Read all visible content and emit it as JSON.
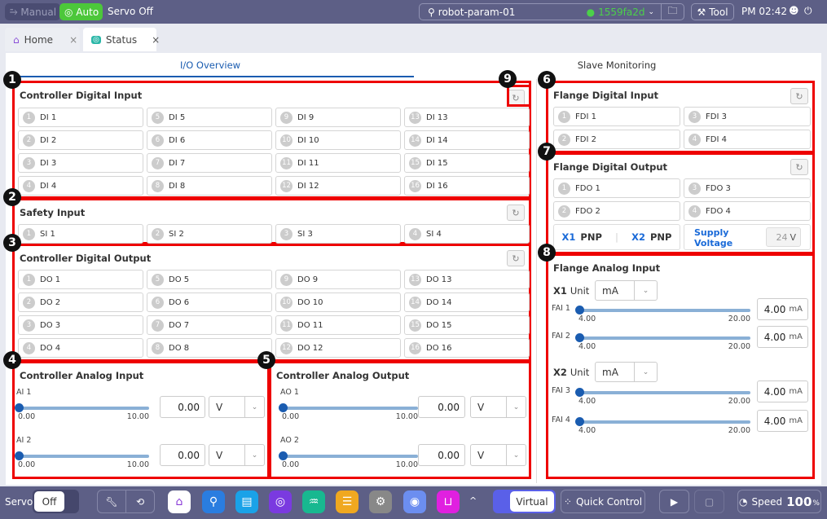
{
  "topbar": {
    "manual": "Manual",
    "auto": "Auto",
    "servo_status": "Servo Off",
    "project": "robot-param-01",
    "commit": "1559fa2d",
    "tool": "Tool",
    "time": "PM 02:42"
  },
  "tabs": [
    {
      "label": "Home"
    },
    {
      "label": "Status"
    }
  ],
  "subtabs": {
    "io": "I/O Overview",
    "slave": "Slave Monitoring"
  },
  "badges": [
    "1",
    "2",
    "3",
    "4",
    "5",
    "6",
    "7",
    "8",
    "9"
  ],
  "cdi": {
    "title": "Controller Digital Input",
    "items": [
      "DI 1",
      "DI 5",
      "DI 9",
      "DI 13",
      "DI 2",
      "DI 6",
      "DI 10",
      "DI 14",
      "DI 3",
      "DI 7",
      "DI 11",
      "DI 15",
      "DI 4",
      "DI 8",
      "DI 12",
      "DI 16"
    ],
    "nums": [
      "1",
      "5",
      "9",
      "13",
      "2",
      "6",
      "10",
      "14",
      "3",
      "7",
      "11",
      "15",
      "4",
      "8",
      "12",
      "16"
    ]
  },
  "si": {
    "title": "Safety Input",
    "items": [
      "SI 1",
      "SI 2",
      "SI 3",
      "SI 4"
    ],
    "nums": [
      "1",
      "2",
      "3",
      "4"
    ]
  },
  "cdo": {
    "title": "Controller Digital Output",
    "items": [
      "DO 1",
      "DO 5",
      "DO 9",
      "DO 13",
      "DO 2",
      "DO 6",
      "DO 10",
      "DO 14",
      "DO 3",
      "DO 7",
      "DO 11",
      "DO 15",
      "DO 4",
      "DO 8",
      "DO 12",
      "DO 16"
    ],
    "nums": [
      "1",
      "5",
      "9",
      "13",
      "2",
      "6",
      "10",
      "14",
      "3",
      "7",
      "11",
      "15",
      "4",
      "8",
      "12",
      "16"
    ]
  },
  "cai": {
    "title": "Controller Analog Input",
    "ch": [
      {
        "label": "AI 1",
        "min": "0.00",
        "max": "10.00",
        "value": "0.00",
        "unit": "V",
        "level": 0
      },
      {
        "label": "AI 2",
        "min": "0.00",
        "max": "10.00",
        "value": "0.00",
        "unit": "V",
        "level": 0
      }
    ]
  },
  "cao": {
    "title": "Controller Analog Output",
    "ch": [
      {
        "label": "AO 1",
        "min": "0.00",
        "max": "10.00",
        "value": "0.00",
        "unit": "V",
        "level": 0
      },
      {
        "label": "AO 2",
        "min": "0.00",
        "max": "10.00",
        "value": "0.00",
        "unit": "V",
        "level": 0
      }
    ]
  },
  "fdi": {
    "title": "Flange Digital Input",
    "items": [
      "FDI 1",
      "FDI 3",
      "FDI 2",
      "FDI 4"
    ],
    "nums": [
      "1",
      "3",
      "2",
      "4"
    ]
  },
  "fdo": {
    "title": "Flange Digital Output",
    "items": [
      "FDO 1",
      "FDO 3",
      "FDO 2",
      "FDO 4"
    ],
    "nums": [
      "1",
      "3",
      "2",
      "4"
    ],
    "x1": "X1",
    "x1_type": "PNP",
    "x2": "X2",
    "x2_type": "PNP",
    "supply_label": "Supply Voltage",
    "supply_value": "24",
    "supply_unit": "V"
  },
  "fai": {
    "title": "Flange Analog Input",
    "x1_label": "X1",
    "x2_label": "X2",
    "unit_label": "Unit",
    "x1_unit": "mA",
    "x2_unit": "mA",
    "ch": [
      {
        "label": "FAI 1",
        "min": "4.00",
        "max": "20.00",
        "value": "4.00",
        "unit": "mA",
        "level": 0
      },
      {
        "label": "FAI 2",
        "min": "4.00",
        "max": "20.00",
        "value": "4.00",
        "unit": "mA",
        "level": 0
      },
      {
        "label": "FAI 3",
        "min": "4.00",
        "max": "20.00",
        "value": "4.00",
        "unit": "mA",
        "level": 0
      },
      {
        "label": "FAI 4",
        "min": "4.00",
        "max": "20.00",
        "value": "4.00",
        "unit": "mA",
        "level": 0
      }
    ]
  },
  "bottombar": {
    "servo": "Servo",
    "servo_state": "Off",
    "virtual": "Virtual",
    "quick_control": "Quick Control",
    "speed_label": "Speed",
    "speed_value": "100",
    "speed_unit": "%"
  },
  "colors": {
    "accent": "#1a5cb0",
    "auto_green": "#4cc73a",
    "topbar": "#5d5f86",
    "highlight": "#e00000"
  }
}
